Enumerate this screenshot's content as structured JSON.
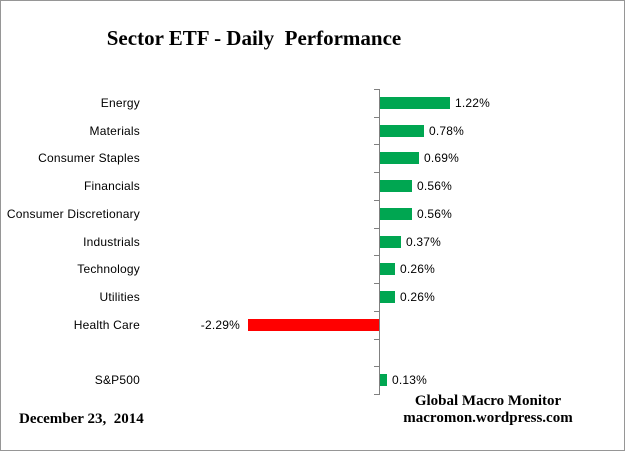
{
  "title": "Sector ETF - Daily  Performance",
  "footer": {
    "date": "December 23,  2014",
    "source_line1": "Global Macro Monitor",
    "source_line2": "macromon.wordpress.com"
  },
  "chart_data": {
    "type": "bar",
    "orientation": "horizontal",
    "title": "Sector ETF - Daily Performance",
    "categories": [
      "Energy",
      "Materials",
      "Consumer Staples",
      "Financials",
      "Consumer Discretionary",
      "Industrials",
      "Technology",
      "Utilities",
      "Health Care",
      "",
      "S&P500"
    ],
    "values": [
      1.22,
      0.78,
      0.69,
      0.56,
      0.56,
      0.37,
      0.26,
      0.26,
      -2.29,
      null,
      0.13
    ],
    "value_labels": [
      "1.22%",
      "0.78%",
      "0.69%",
      "0.56%",
      "0.56%",
      "0.37%",
      "0.26%",
      "0.26%",
      "-2.29%",
      "",
      "0.13%"
    ],
    "xlim": [
      -2.5,
      1.5
    ],
    "grid": false,
    "legend": false,
    "value_suffix": "%",
    "colors": {
      "positive_bar": "#00A651",
      "negative_bar": "#FF0000",
      "axis": "#808080",
      "text": "#000000",
      "frame_border": "#969696"
    }
  }
}
